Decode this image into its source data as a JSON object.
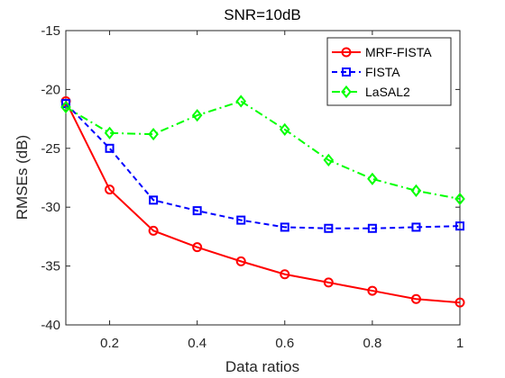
{
  "chart_data": {
    "type": "line",
    "title": "SNR=10dB",
    "xlabel": "Data ratios",
    "ylabel": "RMSEs (dB)",
    "xlim": [
      0.1,
      1
    ],
    "ylim": [
      -40,
      -15
    ],
    "xticks": [
      0.2,
      0.4,
      0.6,
      0.8,
      1
    ],
    "xtick_labels": [
      "0.2",
      "0.4",
      "0.6",
      "0.8",
      "1"
    ],
    "yticks": [
      -15,
      -20,
      -25,
      -30,
      -35,
      -40
    ],
    "ytick_labels": [
      "-15",
      "-20",
      "-25",
      "-30",
      "-35",
      "-40"
    ],
    "grid": false,
    "legend_position": "top-right",
    "x": [
      0.1,
      0.2,
      0.3,
      0.4,
      0.5,
      0.6,
      0.7,
      0.8,
      0.9,
      1.0
    ],
    "series": [
      {
        "name": "MRF-FISTA",
        "color": "#ff0000",
        "line_style": "solid",
        "marker": "circle",
        "values": [
          -21.0,
          -28.5,
          -32.0,
          -33.4,
          -34.6,
          -35.7,
          -36.4,
          -37.1,
          -37.8,
          -38.1
        ]
      },
      {
        "name": "FISTA",
        "color": "#0000ff",
        "line_style": "dashed",
        "marker": "square",
        "values": [
          -21.2,
          -25.0,
          -29.4,
          -30.3,
          -31.1,
          -31.7,
          -31.8,
          -31.8,
          -31.7,
          -31.6
        ]
      },
      {
        "name": "LaSAL2",
        "color": "#00ff00",
        "line_style": "dashdot",
        "marker": "diamond",
        "values": [
          -21.5,
          -23.7,
          -23.8,
          -22.2,
          -21.0,
          -23.4,
          -26.0,
          -27.6,
          -28.6,
          -29.3
        ]
      }
    ]
  }
}
